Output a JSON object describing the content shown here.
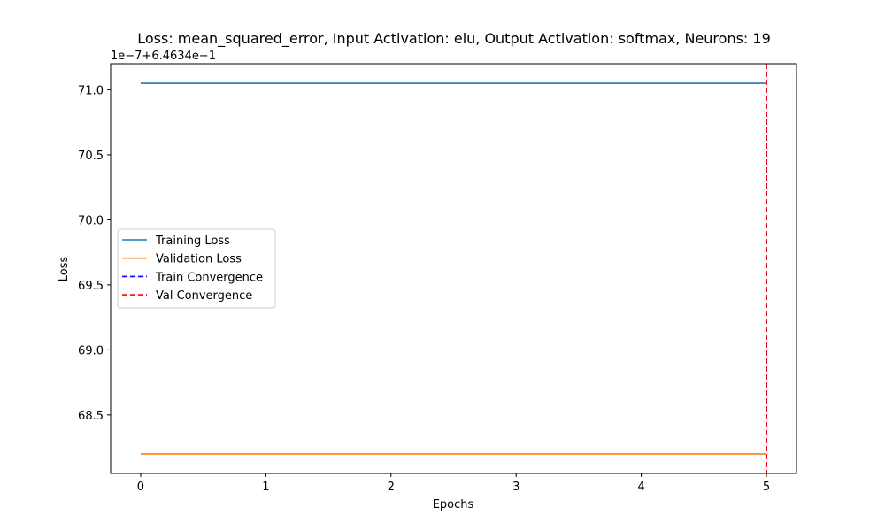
{
  "chart_data": {
    "type": "line",
    "title": "Loss: mean_squared_error, Input Activation: elu, Output Activation: softmax, Neurons: 19",
    "xlabel": "Epochs",
    "ylabel": "Loss",
    "y_offset_label": "1e−7+6.4634e−1",
    "x": [
      0,
      1,
      2,
      3,
      4,
      5
    ],
    "xlim": [
      -0.24,
      5.24
    ],
    "ylim": [
      68.05,
      71.2
    ],
    "x_ticks": [
      0,
      1,
      2,
      3,
      4,
      5
    ],
    "x_tick_labels": [
      "0",
      "1",
      "2",
      "3",
      "4",
      "5"
    ],
    "y_ticks": [
      68.5,
      69.0,
      69.5,
      70.0,
      70.5,
      71.0
    ],
    "y_tick_labels": [
      "68.5",
      "69.0",
      "69.5",
      "70.0",
      "70.5",
      "71.0"
    ],
    "grid": false,
    "legend_position": "center-left",
    "series": [
      {
        "name": "Training Loss",
        "color": "#1f77b4",
        "style": "solid",
        "values": [
          71.05,
          71.05,
          71.05,
          71.05,
          71.05,
          71.05
        ]
      },
      {
        "name": "Validation Loss",
        "color": "#ff7f0e",
        "style": "solid",
        "values": [
          68.2,
          68.2,
          68.2,
          68.2,
          68.2,
          68.2
        ]
      }
    ],
    "vlines": [
      {
        "name": "Train Convergence",
        "color": "#0000ff",
        "style": "dashed",
        "x": 5
      },
      {
        "name": "Val Convergence",
        "color": "#ff0000",
        "style": "dashed",
        "x": 5
      }
    ]
  }
}
